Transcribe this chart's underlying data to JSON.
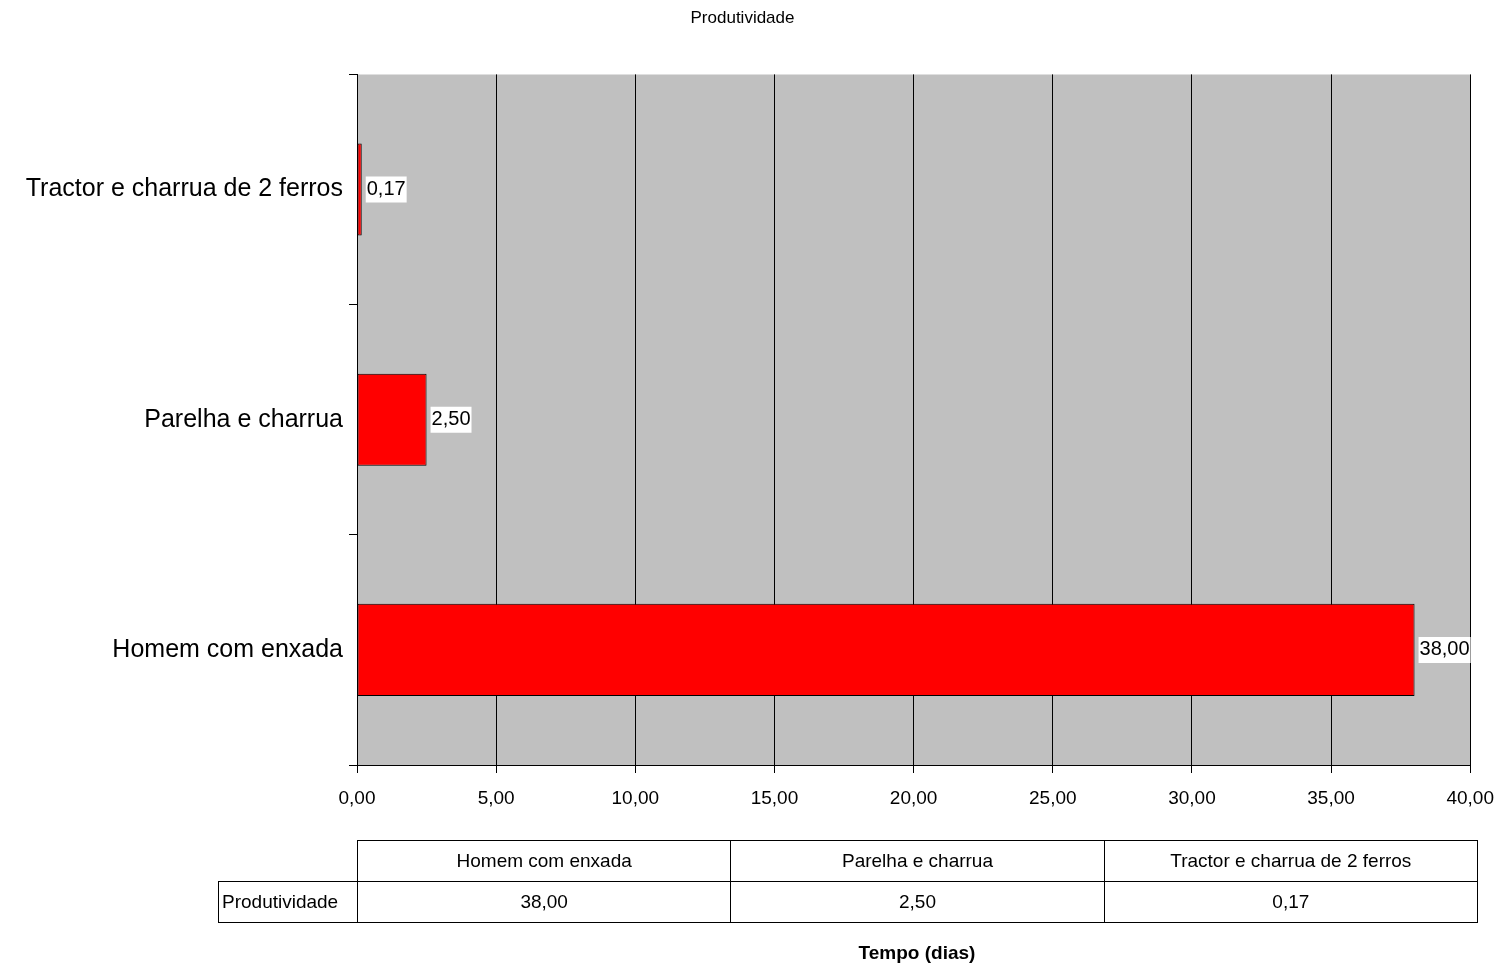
{
  "chart_data": {
    "type": "bar",
    "orientation": "horizontal",
    "title": "Produtividade",
    "annotations": [
      "Tempo (dias)"
    ],
    "categories": [
      "Tractor e charrua de 2 ferros",
      "Parelha e charrua",
      "Homem com enxada"
    ],
    "series": [
      {
        "name": "Produtividade",
        "color": "#ff0000",
        "values": [
          0.17,
          2.5,
          38
        ],
        "value_labels": [
          "0,17",
          "2,50",
          "38,00"
        ]
      }
    ],
    "xlim": [
      0,
      40
    ],
    "xticks": [
      {
        "value": 0,
        "label": "0,00"
      },
      {
        "value": 5,
        "label": "5,00"
      },
      {
        "value": 10,
        "label": "10,00"
      },
      {
        "value": 15,
        "label": "15,00"
      },
      {
        "value": 20,
        "label": "20,00"
      },
      {
        "value": 25,
        "label": "25,00"
      },
      {
        "value": 30,
        "label": "30,00"
      },
      {
        "value": 35,
        "label": "35,00"
      },
      {
        "value": 40,
        "label": "40,00"
      }
    ],
    "grid": "x",
    "legend": false
  }
}
